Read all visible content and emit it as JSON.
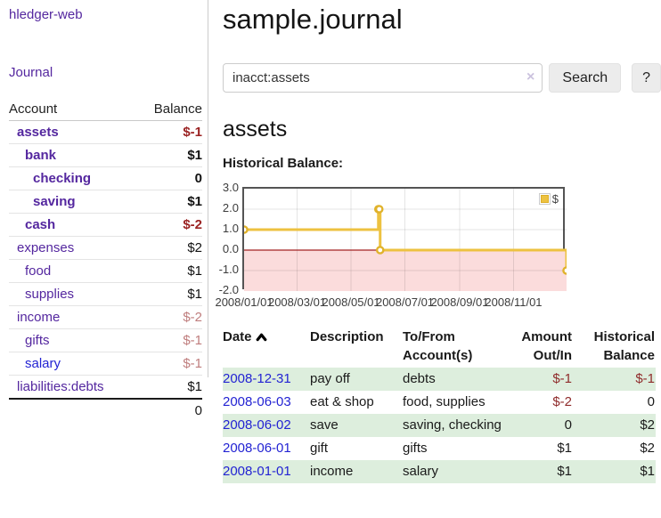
{
  "app": {
    "title": "hledger-web"
  },
  "sidebar": {
    "journal_link": "Journal",
    "accounts": {
      "header_account": "Account",
      "header_balance": "Balance",
      "rows": [
        {
          "name": "assets",
          "balance": "$-1",
          "indent": 1,
          "bold": true,
          "negative": "strong",
          "link_color": "purple"
        },
        {
          "name": "bank",
          "balance": "$1",
          "indent": 2,
          "bold": true,
          "negative": "none",
          "link_color": "purple"
        },
        {
          "name": "checking",
          "balance": "0",
          "indent": 3,
          "bold": true,
          "negative": "none",
          "link_color": "purple"
        },
        {
          "name": "saving",
          "balance": "$1",
          "indent": 3,
          "bold": true,
          "negative": "none",
          "link_color": "purple"
        },
        {
          "name": "cash",
          "balance": "$-2",
          "indent": 2,
          "bold": true,
          "negative": "strong",
          "link_color": "purple"
        },
        {
          "name": "expenses",
          "balance": "$2",
          "indent": 1,
          "bold": false,
          "negative": "none",
          "link_color": "purple"
        },
        {
          "name": "food",
          "balance": "$1",
          "indent": 2,
          "bold": false,
          "negative": "none",
          "link_color": "purple"
        },
        {
          "name": "supplies",
          "balance": "$1",
          "indent": 2,
          "bold": false,
          "negative": "none",
          "link_color": "purple"
        },
        {
          "name": "income",
          "balance": "$-2",
          "indent": 1,
          "bold": false,
          "negative": "soft",
          "link_color": "purple"
        },
        {
          "name": "gifts",
          "balance": "$-1",
          "indent": 2,
          "bold": false,
          "negative": "soft",
          "link_color": "purple"
        },
        {
          "name": "salary",
          "balance": "$-1",
          "indent": 2,
          "bold": false,
          "negative": "soft",
          "link_color": "blue"
        },
        {
          "name": "liabilities:debts",
          "balance": "$1",
          "indent": 1,
          "bold": false,
          "negative": "none",
          "link_color": "purple"
        }
      ],
      "total": "0"
    }
  },
  "main": {
    "title": "sample.journal",
    "search": {
      "value": "inacct:assets",
      "clear_icon": "×",
      "search_button": "Search",
      "help_button": "?"
    },
    "account_heading": "assets",
    "section_label": "Historical Balance:"
  },
  "chart_data": {
    "type": "line",
    "step": true,
    "title": "Historical Balance",
    "series": [
      {
        "name": "$",
        "points": [
          [
            "2008-01-01",
            1
          ],
          [
            "2008-06-01",
            2
          ],
          [
            "2008-06-02",
            2
          ],
          [
            "2008-06-03",
            0
          ],
          [
            "2008-12-31",
            -1
          ]
        ]
      }
    ],
    "x_ticks": [
      "2008/01/01",
      "2008/03/01",
      "2008/05/01",
      "2008/07/01",
      "2008/09/01",
      "2008/11/01"
    ],
    "y_ticks": [
      3.0,
      2.0,
      1.0,
      0.0,
      -1.0,
      -2.0
    ],
    "xlim": [
      "2008-01-01",
      "2008-12-31"
    ],
    "ylim": [
      -2,
      3
    ],
    "grid": true,
    "legend": {
      "label": "$",
      "position": "top-right"
    },
    "colors": {
      "line": "#edc240",
      "point_ring": "#e0b22b",
      "negative_region": "#fbdcdc",
      "zero_line": "#a42222",
      "border": "#545454"
    }
  },
  "register": {
    "headers": {
      "date": "Date",
      "sort_icon": "up-chevron",
      "description": "Description",
      "accounts": "To/From Account(s)",
      "amount": "Amount Out/In",
      "balance": "Historical Balance"
    },
    "rows": [
      {
        "date": "2008-12-31",
        "description": "pay off",
        "accounts": "debts",
        "amount": "$-1",
        "amount_negative": true,
        "balance": "$-1",
        "balance_negative": true
      },
      {
        "date": "2008-06-03",
        "description": "eat & shop",
        "accounts": "food, supplies",
        "amount": "$-2",
        "amount_negative": true,
        "balance": "0",
        "balance_negative": false
      },
      {
        "date": "2008-06-02",
        "description": "save",
        "accounts": "saving, checking",
        "amount": "0",
        "amount_negative": false,
        "balance": "$2",
        "balance_negative": false
      },
      {
        "date": "2008-06-01",
        "description": "gift",
        "accounts": "gifts",
        "amount": "$1",
        "amount_negative": false,
        "balance": "$2",
        "balance_negative": false
      },
      {
        "date": "2008-01-01",
        "description": "income",
        "accounts": "salary",
        "amount": "$1",
        "amount_negative": false,
        "balance": "$1",
        "balance_negative": false
      }
    ]
  },
  "colors": {
    "link_purple": "#54279f",
    "link_blue": "#2323d3",
    "negative_strong": "#9b2323",
    "negative_soft": "#bf7d7d",
    "table_negative": "#8f2b2b",
    "row_stripe_green": "#ddeedd"
  }
}
